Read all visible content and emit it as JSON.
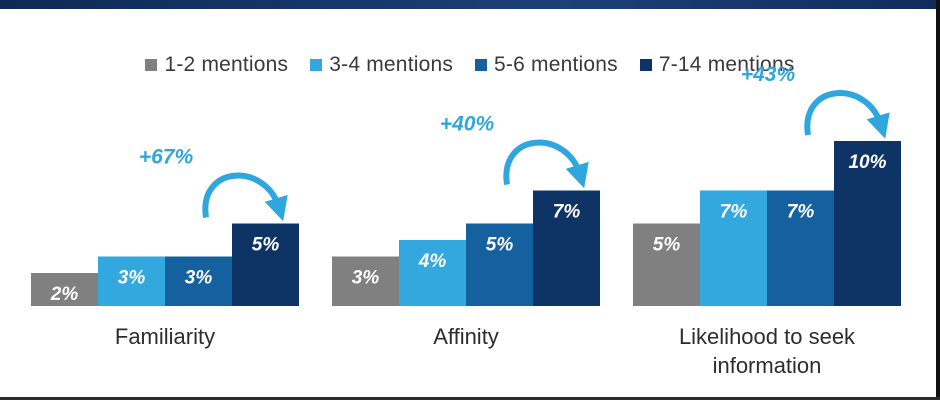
{
  "chart_data": {
    "type": "bar",
    "categories": [
      "Familiarity",
      "Affinity",
      "Likelihood to seek information"
    ],
    "category_label_lines": [
      [
        "Familiarity"
      ],
      [
        "Affinity"
      ],
      [
        "Likelihood to seek",
        "information"
      ]
    ],
    "series": [
      {
        "name": "1-2 mentions",
        "color": "#808080",
        "values": [
          2,
          3,
          5
        ],
        "labels": [
          "2%",
          "3%",
          "5%"
        ]
      },
      {
        "name": "3-4 mentions",
        "color": "#32a8df",
        "values": [
          3,
          4,
          7
        ],
        "labels": [
          "3%",
          "4%",
          "7%"
        ]
      },
      {
        "name": "5-6 mentions",
        "color": "#15609f",
        "values": [
          3,
          5,
          7
        ],
        "labels": [
          "3%",
          "5%",
          "7%"
        ]
      },
      {
        "name": "7-14 mentions",
        "color": "#0e3465",
        "values": [
          5,
          7,
          10
        ],
        "labels": [
          "5%",
          "7%",
          "10%"
        ]
      }
    ],
    "annotations": [
      "+67%",
      "+40%",
      "+43%"
    ],
    "annotation_color": "#2fa6dd",
    "value_unit": "%",
    "legend_position": "top",
    "grid": false,
    "xlabel": "",
    "ylabel": ""
  }
}
